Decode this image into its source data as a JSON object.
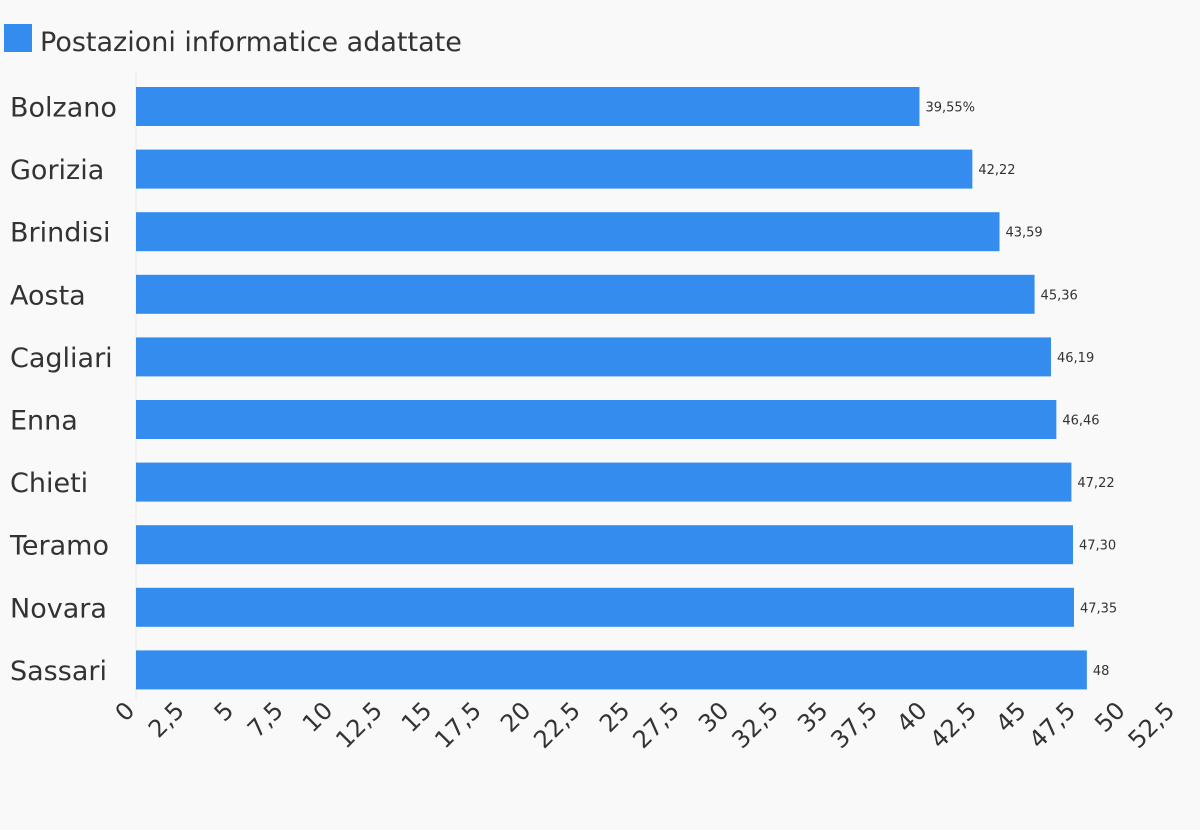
{
  "chart_data": {
    "type": "bar",
    "orientation": "horizontal",
    "categories": [
      "Bolzano",
      "Gorizia",
      "Brindisi",
      "Aosta",
      "Cagliari",
      "Enna",
      "Chieti",
      "Teramo",
      "Novara",
      "Sassari"
    ],
    "series": [
      {
        "name": "Postazioni informatice adattate",
        "values": [
          39.55,
          42.22,
          43.59,
          45.36,
          46.19,
          46.46,
          47.22,
          47.3,
          47.35,
          48
        ],
        "data_labels": [
          "39,55%",
          "42,22",
          "43,59",
          "45,36",
          "46,19",
          "46,46",
          "47,22",
          "47,30",
          "47,35",
          "48"
        ]
      }
    ],
    "xlim": [
      0,
      52.5
    ],
    "x_ticks": [
      0,
      2.5,
      5,
      7.5,
      10,
      12.5,
      15,
      17.5,
      20,
      22.5,
      25,
      27.5,
      30,
      32.5,
      35,
      37.5,
      40,
      42.5,
      45,
      47.5,
      50,
      52.5
    ],
    "x_tick_labels": [
      "0",
      "2,5",
      "5",
      "7,5",
      "10",
      "12,5",
      "15",
      "17,5",
      "20",
      "22,5",
      "25",
      "27,5",
      "30",
      "32,5",
      "35",
      "37,5",
      "40",
      "42,5",
      "45",
      "47,5",
      "50",
      "52,5"
    ],
    "legend_position": "top-left",
    "grid": false,
    "colors": {
      "bar": "#338cee",
      "text": "#333333",
      "background": "#f9f9f9"
    }
  }
}
